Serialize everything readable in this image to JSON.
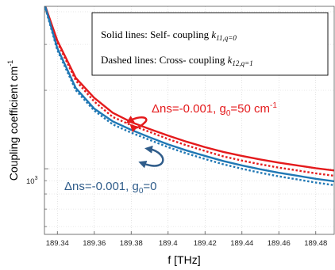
{
  "chart_data": {
    "type": "line",
    "xlabel": "f [THz]",
    "ylabel": "Coupling coefficient cm",
    "ylabel_sup": "-1",
    "xlim": [
      189.333,
      189.49
    ],
    "ylim": [
      560,
      4200
    ],
    "y_scale": "log",
    "x_ticks": [
      189.34,
      189.36,
      189.38,
      189.4,
      189.42,
      189.44,
      189.46,
      189.48
    ],
    "x_tick_labels": [
      "189.34",
      "189.36",
      "189.38",
      "189.4",
      "189.42",
      "189.44",
      "189.46",
      "189.48"
    ],
    "y_major_tick": {
      "value": 1000,
      "base": "10",
      "exp": "3"
    },
    "y_minor_ticks": [
      600,
      700,
      800,
      900,
      2000,
      3000,
      4000
    ],
    "grid": true,
    "legend": {
      "placement": "top-right",
      "line1_prefix": "Solid lines: Self- coupling ",
      "line1_k": "k",
      "line1_sub": "11,q=0",
      "line2_prefix": "Dashed lines: Cross- coupling ",
      "line2_k": "k",
      "line2_sub": "12,q=1"
    },
    "annotations": {
      "red_main": "Δns=-0.001, g",
      "red_sub": "0",
      "red_tail": "=50 cm",
      "red_sup": "-1",
      "blue_main": "Δns=-0.001, g",
      "blue_sub": "0",
      "blue_tail": "=0"
    },
    "colors": {
      "red": "#e41a1c",
      "blue": "#1f77b4",
      "blue_text": "#2f5c8a",
      "grid": "#c8c8c8"
    },
    "series": [
      {
        "style": "solid",
        "color": "#e41a1c",
        "points": [
          [
            189.333,
            4300
          ],
          [
            189.34,
            3100
          ],
          [
            189.35,
            2230
          ],
          [
            189.36,
            1870
          ],
          [
            189.37,
            1640
          ],
          [
            189.38,
            1510
          ],
          [
            189.39,
            1420
          ],
          [
            189.4,
            1340
          ],
          [
            189.41,
            1270
          ],
          [
            189.42,
            1210
          ],
          [
            189.43,
            1160
          ],
          [
            189.44,
            1120
          ],
          [
            189.45,
            1085
          ],
          [
            189.46,
            1055
          ],
          [
            189.47,
            1030
          ],
          [
            189.48,
            1005
          ],
          [
            189.49,
            985
          ]
        ]
      },
      {
        "style": "dashed",
        "color": "#e41a1c",
        "points": [
          [
            189.333,
            4250
          ],
          [
            189.34,
            3050
          ],
          [
            189.35,
            2180
          ],
          [
            189.36,
            1810
          ],
          [
            189.37,
            1580
          ],
          [
            189.38,
            1470
          ],
          [
            189.39,
            1385
          ],
          [
            189.4,
            1300
          ],
          [
            189.41,
            1230
          ],
          [
            189.42,
            1170
          ],
          [
            189.43,
            1115
          ],
          [
            189.44,
            1075
          ],
          [
            189.45,
            1040
          ],
          [
            189.46,
            1010
          ],
          [
            189.47,
            985
          ],
          [
            189.48,
            960
          ],
          [
            189.49,
            940
          ]
        ]
      },
      {
        "style": "solid",
        "color": "#1f77b4",
        "points": [
          [
            189.333,
            4300
          ],
          [
            189.34,
            2900
          ],
          [
            189.35,
            2040
          ],
          [
            189.36,
            1700
          ],
          [
            189.37,
            1520
          ],
          [
            189.38,
            1410
          ],
          [
            189.39,
            1320
          ],
          [
            189.4,
            1240
          ],
          [
            189.41,
            1175
          ],
          [
            189.42,
            1120
          ],
          [
            189.43,
            1070
          ],
          [
            189.44,
            1030
          ],
          [
            189.45,
            995
          ],
          [
            189.46,
            965
          ],
          [
            189.47,
            940
          ],
          [
            189.48,
            915
          ],
          [
            189.49,
            895
          ]
        ]
      },
      {
        "style": "dashed",
        "color": "#1f77b4",
        "points": [
          [
            189.333,
            4250
          ],
          [
            189.34,
            2850
          ],
          [
            189.35,
            2000
          ],
          [
            189.36,
            1670
          ],
          [
            189.37,
            1480
          ],
          [
            189.38,
            1375
          ],
          [
            189.39,
            1290
          ],
          [
            189.4,
            1210
          ],
          [
            189.41,
            1145
          ],
          [
            189.42,
            1090
          ],
          [
            189.43,
            1040
          ],
          [
            189.44,
            1000
          ],
          [
            189.45,
            965
          ],
          [
            189.46,
            935
          ],
          [
            189.47,
            910
          ],
          [
            189.48,
            885
          ],
          [
            189.49,
            865
          ]
        ]
      }
    ]
  }
}
